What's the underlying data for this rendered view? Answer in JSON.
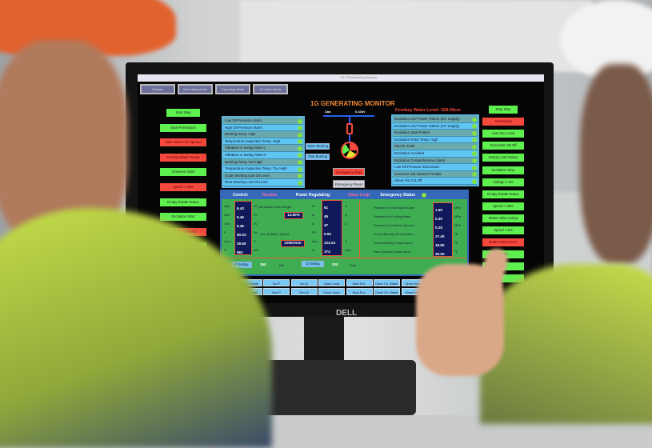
{
  "screen": {
    "window_title": "1G CS Monitoring System",
    "tabs": [
      "Display",
      "Generating Mode",
      "Operating Mode",
      "1G Alarm Mode"
    ],
    "title": "1G GENERATING MONITOR",
    "bus_labels": [
      "Uab",
      "6.43kV"
    ],
    "forebay_label": "Forebay Water Level:",
    "forebay_value": "158.00cm",
    "left_steps": [
      {
        "label": "Start Step",
        "state": "green"
      },
      {
        "label": "Start Permission",
        "state": "green"
      },
      {
        "label": "Main Valve Full Opened",
        "state": "red"
      },
      {
        "label": "Cooling Water Ready",
        "state": "red"
      },
      {
        "label": "Governor Start",
        "state": "green"
      },
      {
        "label": "Speed > 95%",
        "state": "red"
      },
      {
        "label": "Empty Rotate Status",
        "state": "green"
      },
      {
        "label": "Excitation Start",
        "state": "green"
      },
      {
        "label": "Voltage > 95%Ue",
        "state": "red"
      },
      {
        "label": "Empty Load Status",
        "state": "green"
      },
      {
        "label": "Auto Syn. Position",
        "state": "green"
      },
      {
        "label": "Generator CB On",
        "state": "red"
      },
      {
        "label": "Generating",
        "state": "red"
      }
    ],
    "right_steps": [
      {
        "label": "Stop Step",
        "state": "green"
      },
      {
        "label": "Generating",
        "state": "red"
      },
      {
        "label": "Auto Dec Load",
        "state": "green"
      },
      {
        "label": "Generator CB Off",
        "state": "green"
      },
      {
        "label": "Empty Load Status",
        "state": "green"
      },
      {
        "label": "Excitation Stop",
        "state": "green"
      },
      {
        "label": "Voltage < 5%",
        "state": "green"
      },
      {
        "label": "Empty Rotate Status",
        "state": "green"
      },
      {
        "label": "Speed < 35%",
        "state": "green"
      },
      {
        "label": "Brake Valve Acting",
        "state": "green"
      },
      {
        "label": "Speed < 5%",
        "state": "green"
      },
      {
        "label": "Brake Valve Reset",
        "state": "red"
      },
      {
        "label": "Cool W...",
        "state": "green"
      },
      {
        "label": "Ma...",
        "state": "green"
      },
      {
        "label": "",
        "state": "green"
      }
    ],
    "alarms_left": [
      "Low Oil Pressure Alarm",
      "High Oil Pressure Alarm",
      "Bearing Temp. High",
      "Temperature Inspection Temp. High",
      "Vibration or Swing Alarm I",
      "Vibration or Swing Alarm II",
      "Bearing Temp. Too High",
      "Temperature Inspection Temp. Too High",
      "Guide Bearing Low Oil Level",
      "Rear Bearing Low Oil Level"
    ],
    "alarms_right": [
      "Excitation 24V Power Failure (DC Supply)",
      "Excitation 24V Power Failure (AC Supply)",
      "Excitation Start Failure",
      "Excitation Rotor Temp. High",
      "Electric Fault",
      "Excitation Accident",
      "Excitation Comprehensive Alarm",
      "Low Oil Pressure Shut Down",
      "Governor A/B channel Trouble",
      "Shear Pin Cut Off"
    ],
    "bearing_buttons": [
      "Open Bearing",
      "Stop Bearing"
    ],
    "emergency_stop": "Emergency Stop",
    "emergency_reset": "Emergency Reset",
    "panel": {
      "control_label": "Control:",
      "control_value": "Remote",
      "power_label": "Power Regulating:",
      "power_value": "Close Loop",
      "emergency_label": "Emergency Status",
      "electrical": [
        {
          "name": "Uab",
          "value": "6.43",
          "unit": "kV"
        },
        {
          "name": "Ubc",
          "value": "6.46",
          "unit": "kV"
        },
        {
          "name": "Uca",
          "value": "6.46",
          "unit": "kV"
        },
        {
          "name": "F",
          "value": "50.03",
          "unit": "Hz"
        },
        {
          "name": "Uexc",
          "value": "29.50",
          "unit": "V"
        },
        {
          "name": "P",
          "value": "562",
          "unit": "kW"
        }
      ],
      "nozzle_label": "Jet Nozzle Open Angle",
      "nozzle_value": "14.90%",
      "speed_label": "Gen Rotation Speed",
      "speed_value": "1000r/min",
      "currents": [
        {
          "name": "Ia",
          "value": "51",
          "unit": "A"
        },
        {
          "name": "Ib",
          "value": "45",
          "unit": "A"
        },
        {
          "name": "Ic",
          "value": "47",
          "unit": "A"
        },
        {
          "name": "PF",
          "value": "0.94",
          "unit": ""
        },
        {
          "name": "Iexc",
          "value": "123.24",
          "unit": "A"
        },
        {
          "name": "Q",
          "value": "174",
          "unit": "kVar"
        }
      ],
      "hydraulics": [
        {
          "name": "Pressure of Inlet Spiral Case",
          "value": "1.60",
          "unit": "MPa"
        },
        {
          "name": "Pressure of Cooling Water",
          "value": "0.30",
          "unit": "MPa"
        },
        {
          "name": "Pressure of Tailrace Vacuum",
          "value": "0.20",
          "unit": "MPa"
        },
        {
          "name": "Thrust Bearing Temperature",
          "value": "27.40",
          "unit": "℃"
        },
        {
          "name": "Guide Bearing Temperature",
          "value": "18.80",
          "unit": "℃"
        },
        {
          "name": "Rear Bearing Temperature",
          "value": "29.00",
          "unit": "℃"
        }
      ],
      "p_setting_label": "P Setting",
      "p_setting_value": "350",
      "p_setting_unit": "kW",
      "q_setting_label": "Q Setting",
      "q_setting_value": "200",
      "q_setting_unit": "kVar"
    },
    "bottom_row1": [
      "Start",
      "Empty Rotate",
      "Inc.P",
      "Inc.Q",
      "Open Loop",
      "Start Exc.",
      "Open Co. Water",
      "Open Main V",
      "Brake Pull Into",
      "Pul Into Syn."
    ],
    "bottom_row2": [
      "Stop",
      "Empty Load",
      "Dec.P",
      "Dec.Q",
      "Close Loop",
      "Stop Exc.",
      "Close Co. Water",
      "Close Main V",
      "Brake Reset",
      ""
    ]
  },
  "monitor_brand": "DELL",
  "colors": {
    "green": "#5df04e",
    "red": "#f5493e",
    "panel": "#3fae52",
    "header": "#3568b8",
    "title": "#f08a3a"
  }
}
